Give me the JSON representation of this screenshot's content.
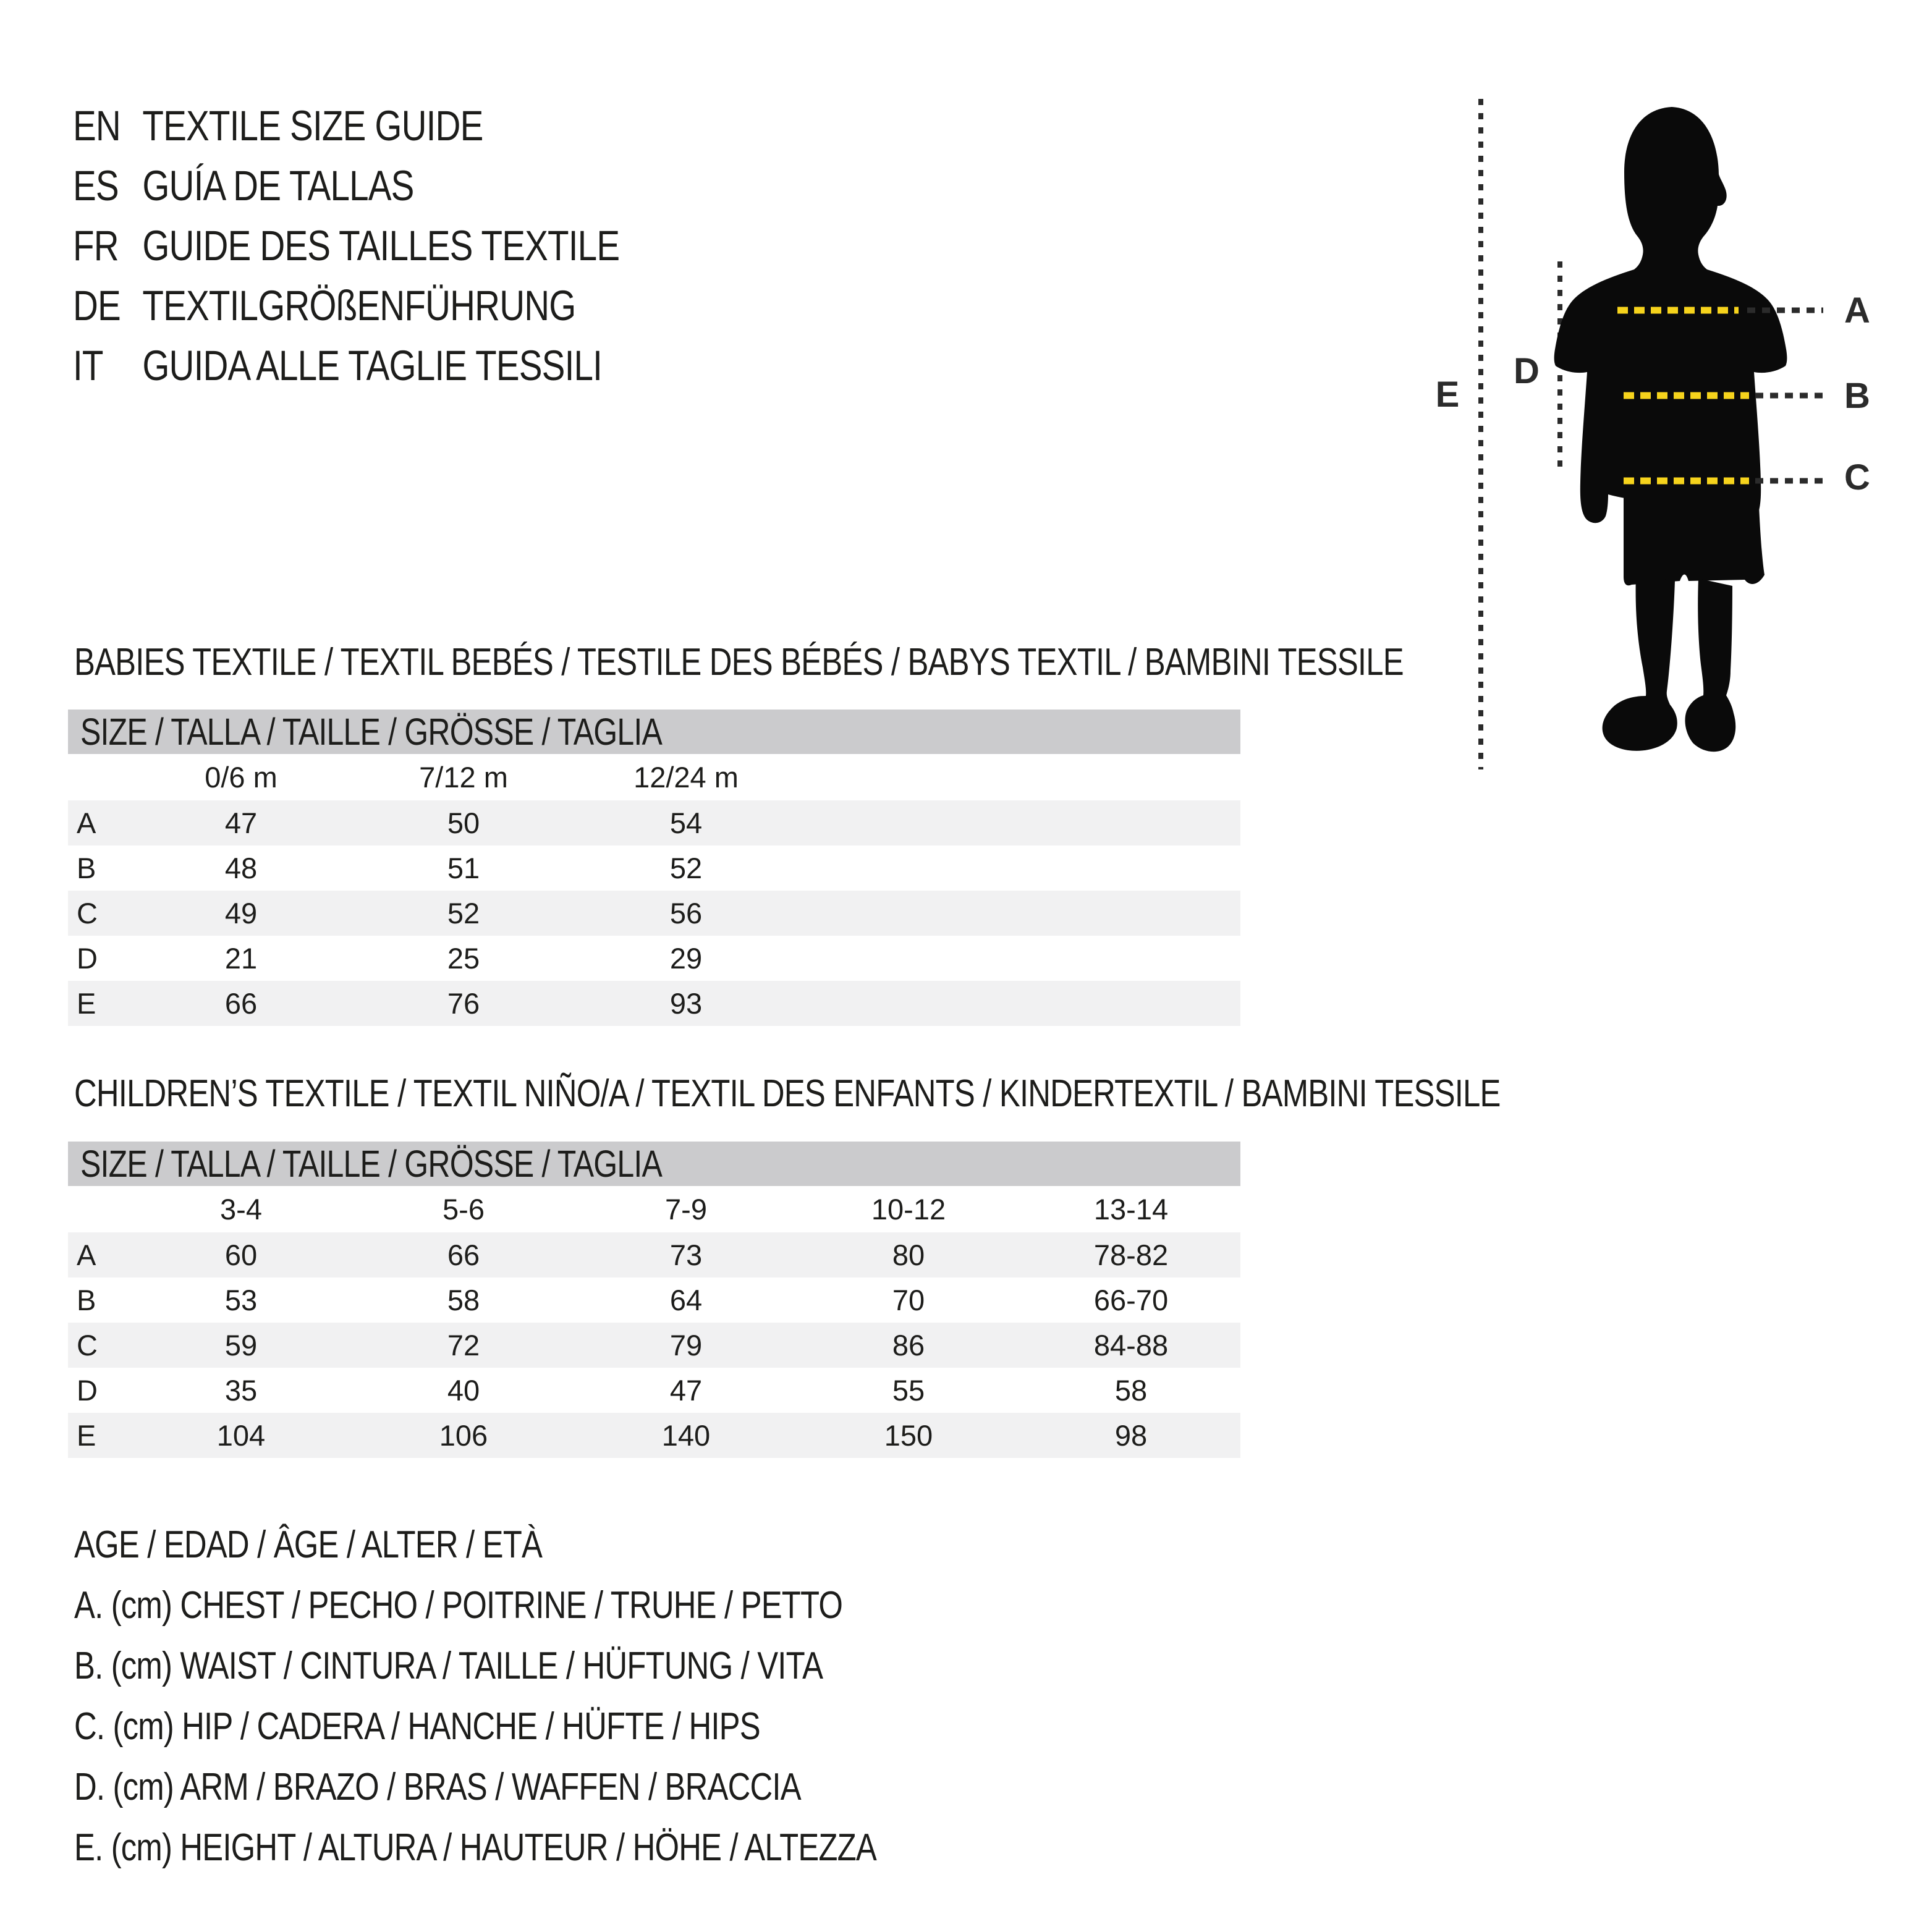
{
  "title_block": {
    "lines": [
      {
        "code": "EN",
        "text": "TEXTILE SIZE GUIDE"
      },
      {
        "code": "ES",
        "text": "GUÍA DE TALLAS"
      },
      {
        "code": "FR",
        "text": "GUIDE DES TAILLES TEXTILE"
      },
      {
        "code": "DE",
        "text": "TEXTILGRÖßENFÜHRUNG"
      },
      {
        "code": "IT",
        "text": "GUIDA ALLE TAGLIE TESSILI"
      }
    ]
  },
  "figure": {
    "labels": {
      "chest": "A",
      "waist": "B",
      "hip": "C",
      "arm": "D",
      "height": "E"
    }
  },
  "babies": {
    "title": "BABIES TEXTILE / TEXTIL BEBÉS / TESTILE DES BÉBÉS / BABYS TEXTIL / BAMBINI TESSILE",
    "size_header": "SIZE / TALLA / TAILLE / GRÖSSE / TAGLIA",
    "columns": [
      "0/6 m",
      "7/12 m",
      "12/24 m"
    ],
    "rows": [
      {
        "label": "A",
        "values": [
          "47",
          "50",
          "54"
        ]
      },
      {
        "label": "B",
        "values": [
          "48",
          "51",
          "52"
        ]
      },
      {
        "label": "C",
        "values": [
          "49",
          "52",
          "56"
        ]
      },
      {
        "label": "D",
        "values": [
          "21",
          "25",
          "29"
        ]
      },
      {
        "label": "E",
        "values": [
          "66",
          "76",
          "93"
        ]
      }
    ]
  },
  "children": {
    "title": "CHILDREN’S TEXTILE / TEXTIL NIÑO/A / TEXTIL DES ENFANTS / KINDERTEXTIL / BAMBINI TESSILE",
    "size_header": "SIZE / TALLA / TAILLE / GRÖSSE / TAGLIA",
    "columns": [
      "3-4",
      "5-6",
      "7-9",
      "10-12",
      "13-14"
    ],
    "rows": [
      {
        "label": "A",
        "values": [
          "60",
          "66",
          "73",
          "80",
          "78-82"
        ]
      },
      {
        "label": "B",
        "values": [
          "53",
          "58",
          "64",
          "70",
          "66-70"
        ]
      },
      {
        "label": "C",
        "values": [
          "59",
          "72",
          "79",
          "86",
          "84-88"
        ]
      },
      {
        "label": "D",
        "values": [
          "35",
          "40",
          "47",
          "55",
          "58"
        ]
      },
      {
        "label": "E",
        "values": [
          "104",
          "106",
          "140",
          "150",
          "98"
        ]
      }
    ]
  },
  "legend": {
    "lines": [
      "AGE / EDAD / ÂGE / ALTER / ETÀ",
      "A. (cm) CHEST / PECHO / POITRINE / TRUHE / PETTO",
      "B. (cm) WAIST / CINTURA / TAILLE / HÜFTUNG / VITA",
      "C. (cm) HIP / CADERA / HANCHE / HÜFTE / HIPS",
      "D. (cm) ARM / BRAZO / BRAS / WAFFEN / BRACCIA",
      "E. (cm) HEIGHT / ALTURA / HAUTEUR / HÖHE / ALTEZZA"
    ]
  },
  "colors": {
    "text": "#1d1d1b",
    "silhouette": "#0a0a0a",
    "dash_dark": "#2b2b2b",
    "dash_yellow": "#f6d31c",
    "table_header_bg": "#cbcbcd",
    "table_stripe_bg": "#f1f1f2",
    "background": "#ffffff"
  }
}
